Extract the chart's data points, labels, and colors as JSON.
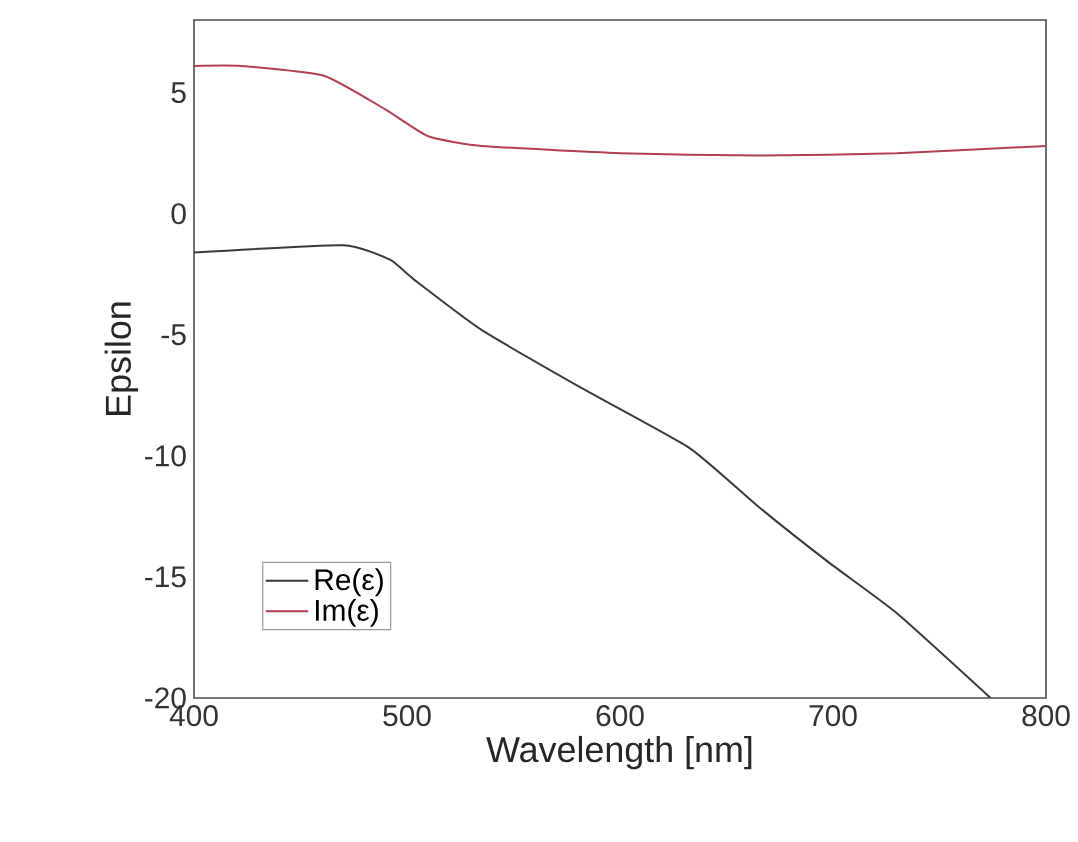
{
  "chart_data": {
    "type": "line",
    "xlabel": "Wavelength [nm]",
    "ylabel": "Epsilon",
    "xlim": [
      400,
      800
    ],
    "ylim": [
      -20,
      8
    ],
    "xticks": [
      400,
      500,
      600,
      700,
      800
    ],
    "yticks": [
      -20,
      -15,
      -10,
      -5,
      0,
      5
    ],
    "grid": false,
    "legend": "bottom left",
    "marker": "none",
    "line_style": "solid",
    "series": [
      {
        "name": "Re(ε)",
        "color": "#3a3a3a",
        "x": [
          400,
          470,
          492,
          503,
          535,
          584,
          633,
          665,
          698,
          730,
          774
        ],
        "values": [
          -1.6,
          -1.3,
          -1.9,
          -2.7,
          -4.8,
          -7.3,
          -9.7,
          -12.1,
          -14.4,
          -16.5,
          -20
        ]
      },
      {
        "name": "Im(ε)",
        "color": "#b04050",
        "x": [
          400,
          422,
          461,
          490,
          510,
          535,
          600,
          665,
          730,
          800
        ],
        "values": [
          6.1,
          6.1,
          5.7,
          4.3,
          3.2,
          2.8,
          2.5,
          2.4,
          2.5,
          2.8
        ]
      }
    ]
  }
}
